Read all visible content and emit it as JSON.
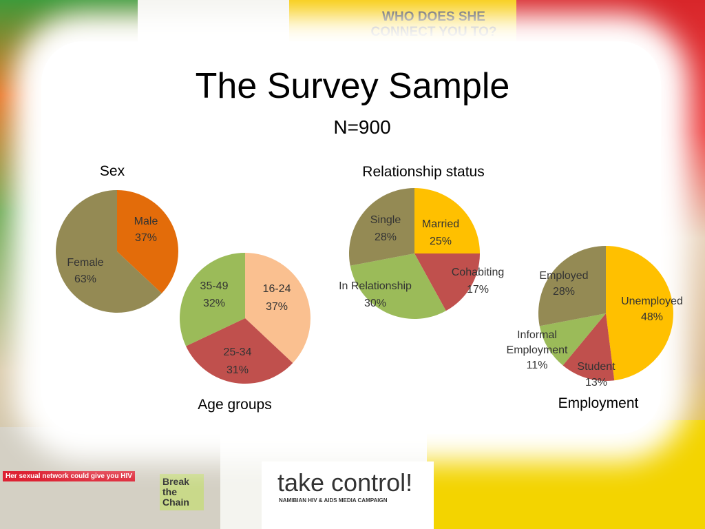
{
  "slide": {
    "title": "The Survey Sample",
    "subtitle": "N=900"
  },
  "background": {
    "poster_top": "WHO DOES SHE CONNECT YOU TO?",
    "poster_left": "Her sexual network could give you HIV",
    "badge": "Break the Chain",
    "logo": "take control!",
    "logo_tagline": "NAMIBIAN HIV & AIDS MEDIA CAMPAIGN"
  },
  "chart_data": [
    {
      "type": "pie",
      "title": "Sex",
      "categories": [
        "Male",
        "Female"
      ],
      "values": [
        37,
        63
      ],
      "value_labels": [
        "37%",
        "63%"
      ],
      "colors": [
        "#e36c0a",
        "#948a54"
      ]
    },
    {
      "type": "pie",
      "title": "Age groups",
      "categories": [
        "16-24",
        "25-34",
        "35-49"
      ],
      "values": [
        37,
        31,
        32
      ],
      "value_labels": [
        "37%",
        "31%",
        "32%"
      ],
      "colors": [
        "#fac090",
        "#c0504d",
        "#9bbb59"
      ]
    },
    {
      "type": "pie",
      "title": "Relationship status",
      "categories": [
        "Married",
        "Cohabiting",
        "In Relationship",
        "Single"
      ],
      "values": [
        25,
        17,
        30,
        28
      ],
      "value_labels": [
        "25%",
        "17%",
        "30%",
        "28%"
      ],
      "colors": [
        "#ffc000",
        "#c0504d",
        "#9bbb59",
        "#948a54"
      ]
    },
    {
      "type": "pie",
      "title": "Employment",
      "categories": [
        "Unemployed",
        "Student",
        "Informal Employment",
        "Employed"
      ],
      "values": [
        48,
        13,
        11,
        28
      ],
      "value_labels": [
        "48%",
        "13%",
        "11%",
        "28%"
      ],
      "colors": [
        "#ffc000",
        "#c0504d",
        "#9bbb59",
        "#948a54"
      ]
    }
  ]
}
